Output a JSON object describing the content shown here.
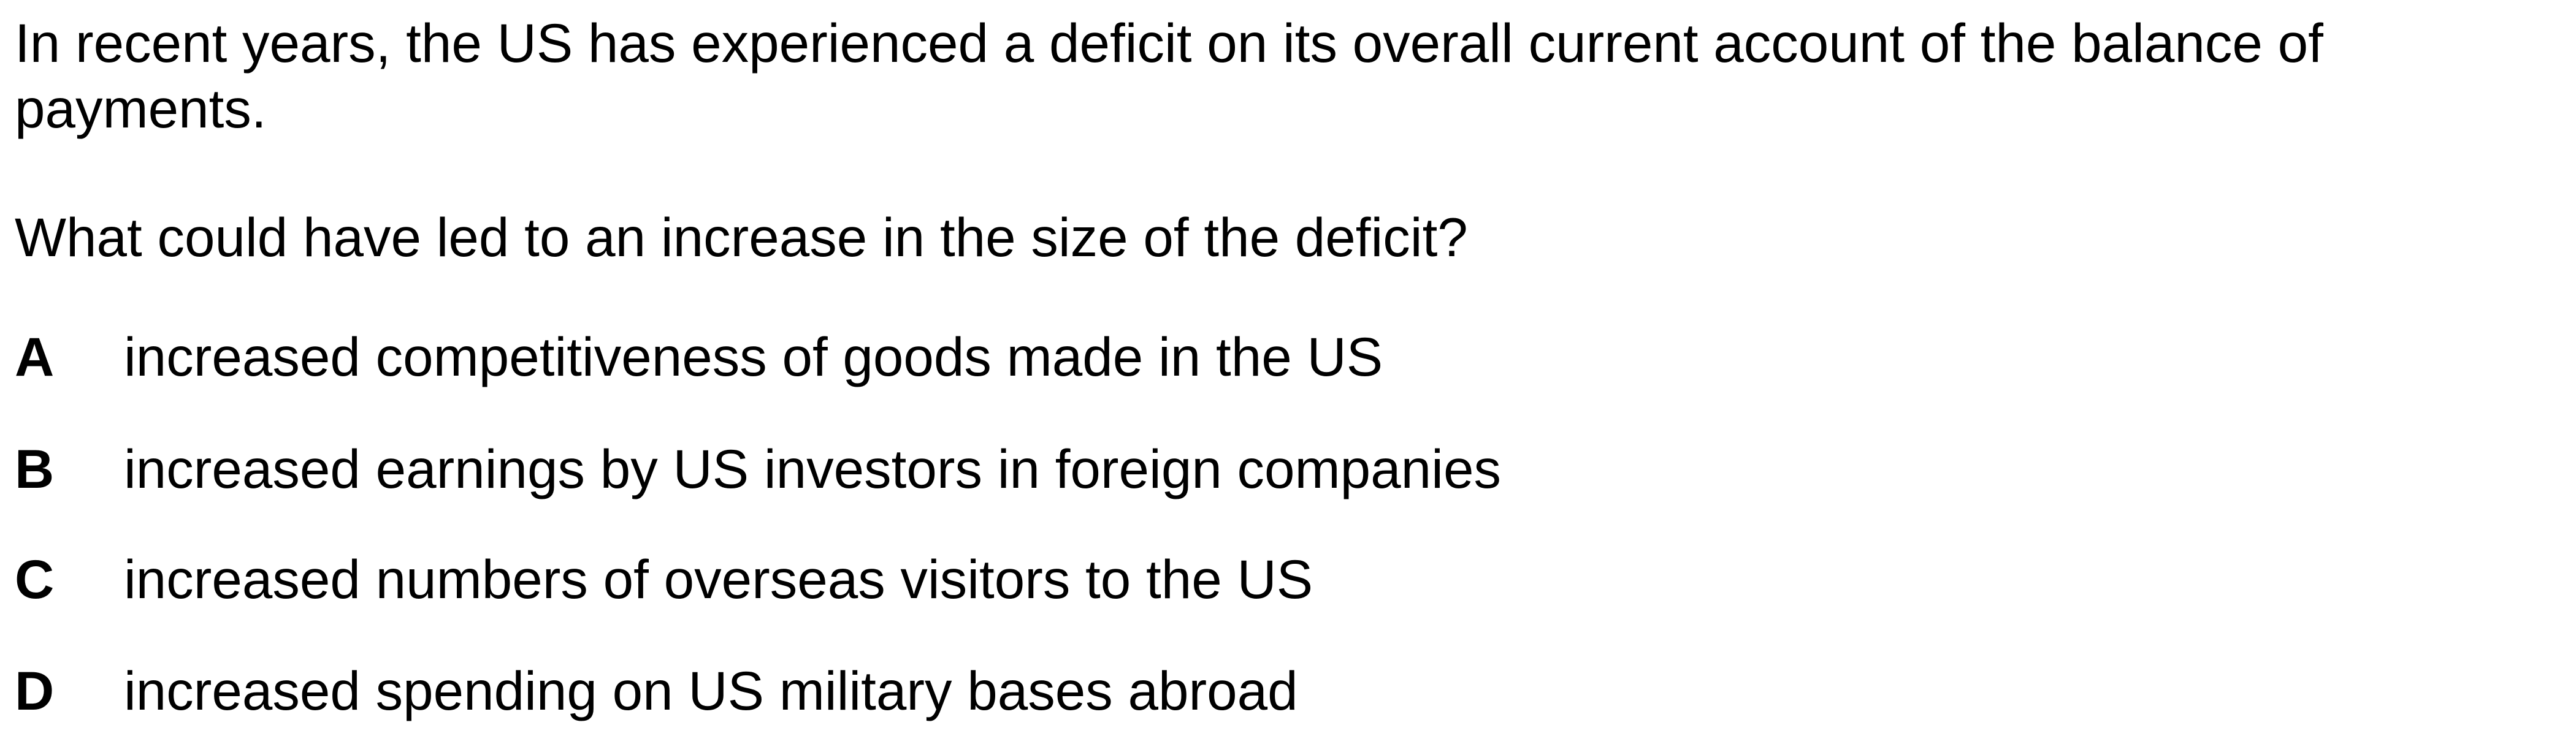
{
  "question": {
    "stem_line_1": "In recent years, the US has experienced a deficit on its overall current account of the balance of",
    "stem_line_2": "payments.",
    "prompt": "What could have led to an increase in the size of the deficit?",
    "options": [
      {
        "letter": "A",
        "text": "increased competitiveness of goods made in the US"
      },
      {
        "letter": "B",
        "text": "increased earnings by US investors in foreign companies"
      },
      {
        "letter": "C",
        "text": "increased numbers of overseas visitors to the US"
      },
      {
        "letter": "D",
        "text": "increased spending on US military bases abroad"
      }
    ]
  }
}
